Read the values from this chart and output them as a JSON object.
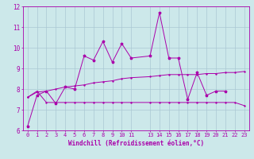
{
  "title": "",
  "xlabel": "Windchill (Refroidissement éolien,°C)",
  "bg_color": "#cce8ea",
  "grid_color": "#aac8d4",
  "line_color": "#aa00aa",
  "spine_color": "#aa00aa",
  "xlim_min": -0.5,
  "xlim_max": 23.5,
  "ylim_min": 6,
  "ylim_max": 12,
  "x_ticks": [
    0,
    1,
    2,
    3,
    4,
    5,
    6,
    7,
    8,
    9,
    10,
    11,
    13,
    14,
    15,
    16,
    17,
    18,
    19,
    20,
    21,
    22,
    23
  ],
  "y_ticks": [
    6,
    7,
    8,
    9,
    10,
    11,
    12
  ],
  "line1_x": [
    0,
    1,
    2,
    3,
    4,
    5,
    6,
    7,
    8,
    9,
    10,
    11,
    13,
    14,
    15,
    16,
    17,
    18,
    19,
    20,
    21
  ],
  "line1_y": [
    6.2,
    7.7,
    7.9,
    7.3,
    8.1,
    8.0,
    9.6,
    9.4,
    10.3,
    9.3,
    10.2,
    9.5,
    9.6,
    11.7,
    9.5,
    9.5,
    7.5,
    8.8,
    7.7,
    7.9,
    7.9
  ],
  "line2_x": [
    0,
    1,
    2,
    3,
    4,
    5,
    6,
    7,
    8,
    9,
    10,
    11,
    13,
    14,
    15,
    16,
    17,
    18,
    19,
    20,
    21,
    22,
    23
  ],
  "line2_y": [
    7.6,
    7.9,
    7.35,
    7.35,
    7.35,
    7.35,
    7.35,
    7.35,
    7.35,
    7.35,
    7.35,
    7.35,
    7.35,
    7.35,
    7.35,
    7.35,
    7.35,
    7.35,
    7.35,
    7.35,
    7.35,
    7.35,
    7.2
  ],
  "line3_x": [
    0,
    1,
    2,
    3,
    4,
    5,
    6,
    7,
    8,
    9,
    10,
    11,
    13,
    14,
    15,
    16,
    17,
    18,
    19,
    20,
    21,
    22,
    23
  ],
  "line3_y": [
    7.6,
    7.85,
    7.9,
    8.0,
    8.1,
    8.15,
    8.2,
    8.3,
    8.35,
    8.4,
    8.5,
    8.55,
    8.6,
    8.65,
    8.7,
    8.7,
    8.7,
    8.7,
    8.75,
    8.75,
    8.8,
    8.8,
    8.85
  ],
  "tick_fontsize": 5,
  "xlabel_fontsize": 5.5,
  "tick_color": "#aa00aa",
  "linewidth": 0.7,
  "markersize": 2.5
}
